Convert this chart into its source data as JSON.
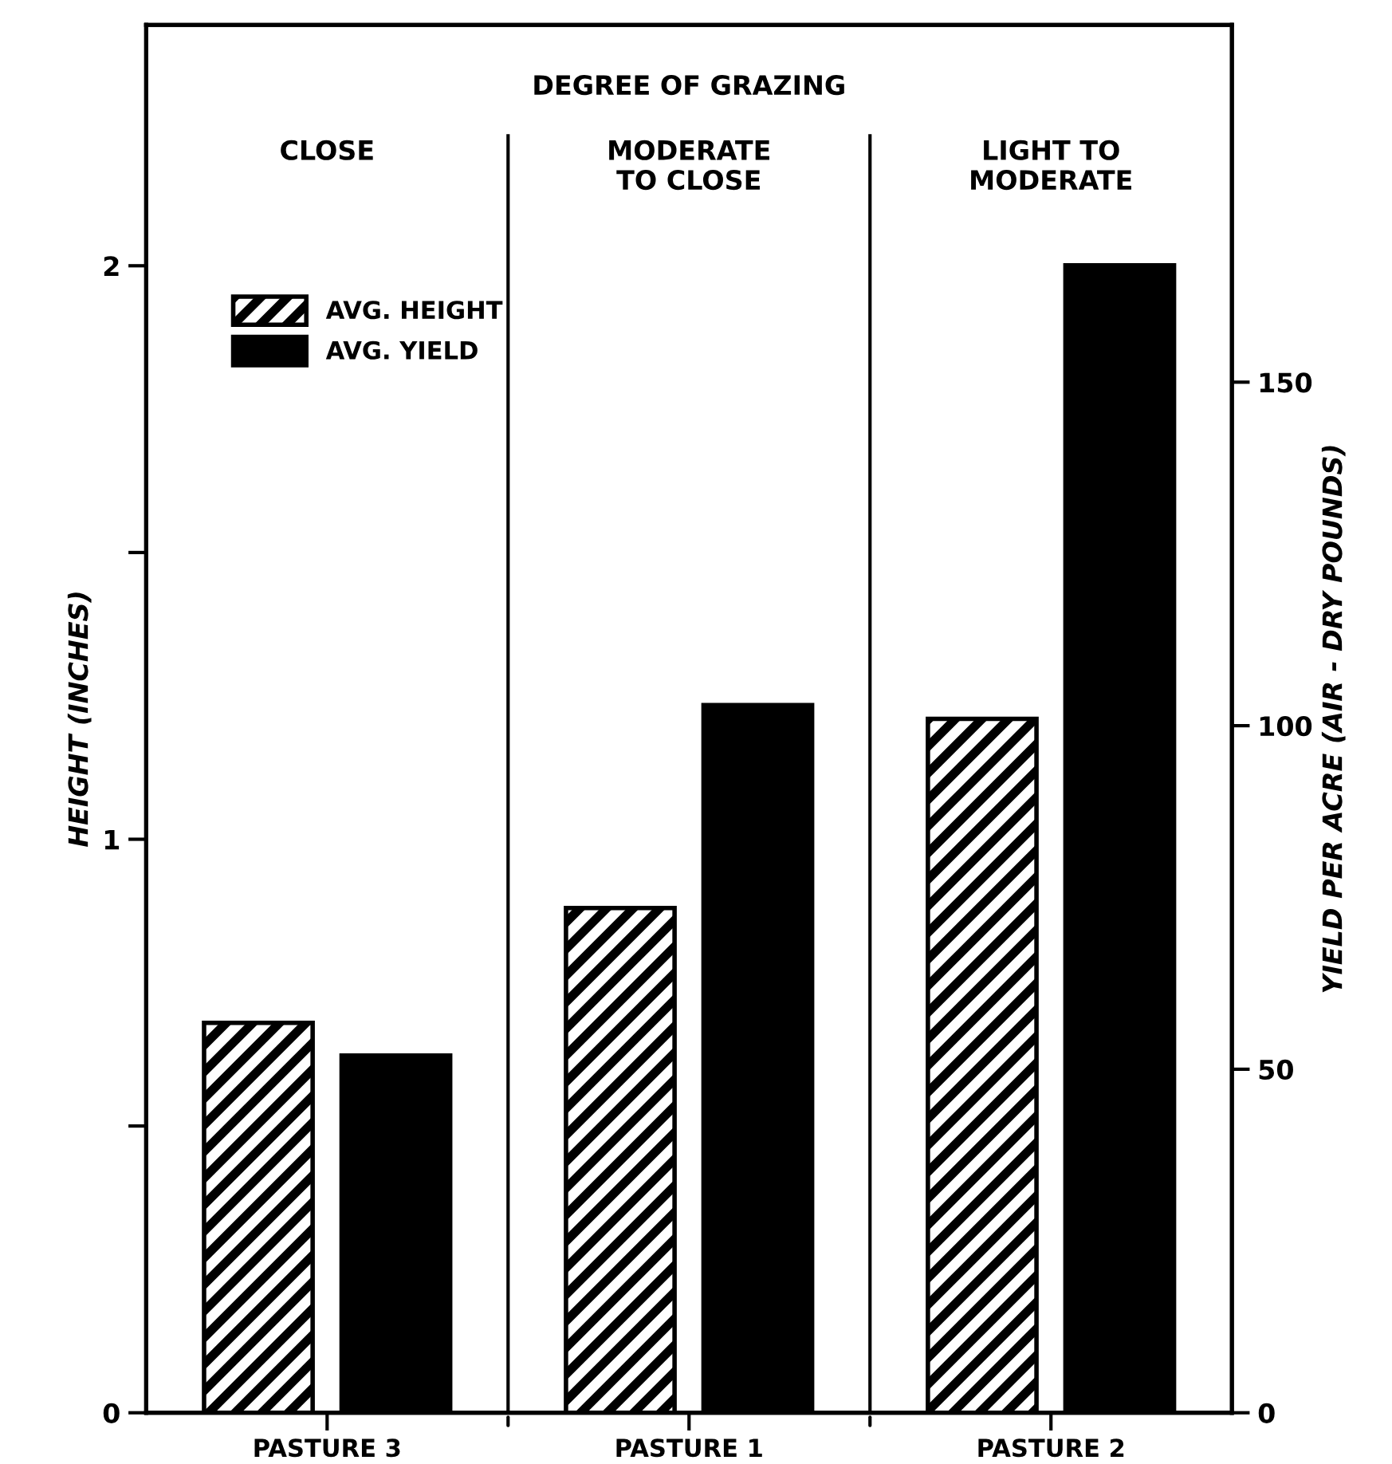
{
  "chart_data": {
    "type": "bar",
    "categories": [
      "PASTURE 3",
      "PASTURE 1",
      "PASTURE 2"
    ],
    "series": [
      {
        "name": "AVG. HEIGHT",
        "color": "#000000",
        "axis": "y",
        "values": [
          0.68,
          0.88,
          1.21
        ]
      },
      {
        "name": "AVG. YIELD",
        "color": "#000000",
        "axis": "y2",
        "values": [
          52,
          103,
          167
        ]
      }
    ],
    "ylabel": "HEIGHT (INCHES)",
    "y2label": "YIELD PER ACRE (AIR - DRY POUNDS)",
    "ylim": [
      0,
      2.42
    ],
    "yticks": [
      0,
      {
        "value": 0.5,
        "label": null
      },
      1,
      {
        "value": 1.5,
        "label": null
      },
      2
    ],
    "y2lim": [
      0,
      202
    ],
    "y2ticks": [
      0,
      50,
      100,
      150
    ],
    "annotations": [
      "DEGREE OF GRAZING",
      "CLOSE",
      "MODERATE\nTO CLOSE",
      "LIGHT TO\nMODERATE"
    ],
    "legend": "top left",
    "grid": false
  }
}
